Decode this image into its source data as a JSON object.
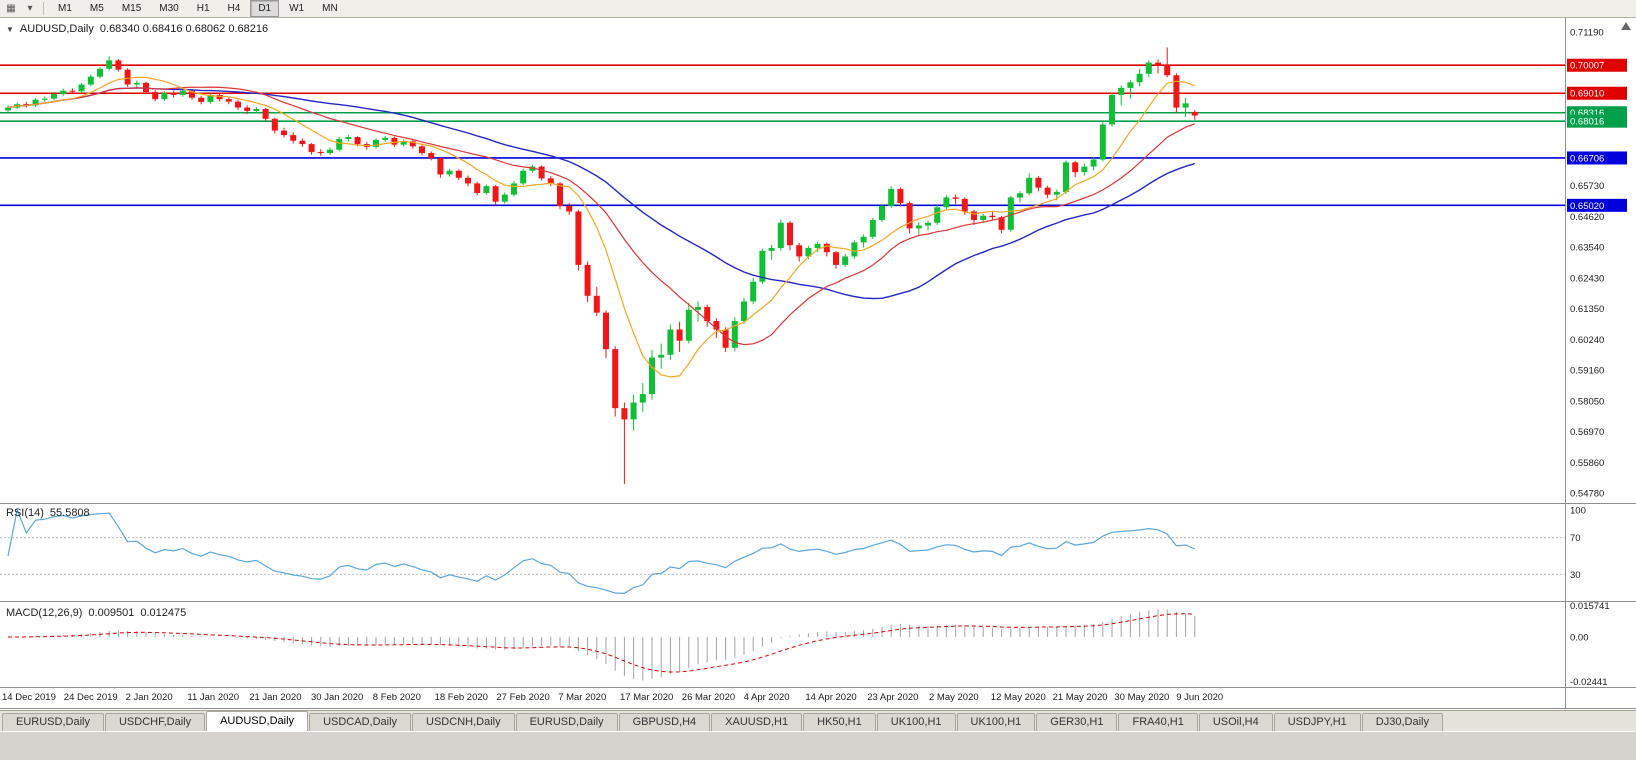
{
  "header": {
    "symbol": "AUDUSD,Daily",
    "ohlc": "0.68340 0.68416 0.68062 0.68216"
  },
  "toolbar": {
    "icons": [
      {
        "name": "charts-icon",
        "glyph": "▦"
      },
      {
        "name": "dropdown-arrow-icon",
        "glyph": "▾"
      }
    ],
    "timeframes": [
      {
        "label": "M1",
        "active": false
      },
      {
        "label": "M5",
        "active": false
      },
      {
        "label": "M15",
        "active": false
      },
      {
        "label": "M30",
        "active": false
      },
      {
        "label": "H1",
        "active": false
      },
      {
        "label": "H4",
        "active": false
      },
      {
        "label": "D1",
        "active": true
      },
      {
        "label": "W1",
        "active": false
      },
      {
        "label": "MN",
        "active": false
      }
    ]
  },
  "rsi_header": {
    "label": "RSI(14)",
    "value": "55.5808"
  },
  "macd_header": {
    "label": "MACD(12,26,9)",
    "value1": "0.009501",
    "value2": "0.012475"
  },
  "colors": {
    "up": "#10bf35",
    "down": "#f21616",
    "ma_fast": "#f5a623",
    "ma_mid": "#e03535",
    "ma_slow": "#2328c8",
    "rsi_line": "#5aa7dc",
    "macd_hist": "#a2a2a2",
    "macd_signal": "#e00000",
    "line_red": "#e00000",
    "line_green": "#00a04a",
    "line_blue": "#0000dc",
    "axis_text": "#1c1c1c",
    "separator": "#8f8f8f"
  },
  "chart_data": {
    "type": "candlestick",
    "symbol": "AUDUSD",
    "timeframe": "Daily",
    "ohlc_display": {
      "open": "0.68340",
      "high": "0.68416",
      "low": "0.68062",
      "close": "0.68216"
    },
    "price_axis": {
      "top": 0.7119,
      "bottom": 0.5478,
      "ticks": [
        "0.71190",
        "0.65730",
        "0.64620",
        "0.63540",
        "0.62430",
        "0.61350",
        "0.60240",
        "0.59160",
        "0.58050",
        "0.56970",
        "0.55860",
        "0.54780"
      ]
    },
    "hlines": [
      {
        "price": 0.70007,
        "label": "0.70007",
        "color": "red"
      },
      {
        "price": 0.6901,
        "label": "0.69010",
        "color": "red"
      },
      {
        "price": 0.68316,
        "label": "0.68316",
        "color": "green"
      },
      {
        "price": 0.68016,
        "label": "0.68016",
        "color": "green"
      },
      {
        "price": 0.66706,
        "label": "0.66706",
        "color": "blue"
      },
      {
        "price": 0.6502,
        "label": "0.65020",
        "color": "blue"
      }
    ],
    "x_labels": [
      "14 Dec 2019",
      "24 Dec 2019",
      "2 Jan 2020",
      "11 Jan 2020",
      "21 Jan 2020",
      "30 Jan 2020",
      "8 Feb 2020",
      "18 Feb 2020",
      "27 Feb 2020",
      "7 Mar 2020",
      "17 Mar 2020",
      "26 Mar 2020",
      "4 Apr 2020",
      "14 Apr 2020",
      "23 Apr 2020",
      "2 May 2020",
      "12 May 2020",
      "21 May 2020",
      "30 May 2020",
      "9 Jun 2020"
    ],
    "candles": [
      [
        0.684,
        0.6858,
        0.6832,
        0.685
      ],
      [
        0.685,
        0.6868,
        0.6845,
        0.6862
      ],
      [
        0.6862,
        0.687,
        0.685,
        0.6858
      ],
      [
        0.6858,
        0.6884,
        0.6852,
        0.6878
      ],
      [
        0.6878,
        0.689,
        0.687,
        0.6882
      ],
      [
        0.6882,
        0.6905,
        0.6876,
        0.6898
      ],
      [
        0.6898,
        0.6918,
        0.6892,
        0.691
      ],
      [
        0.691,
        0.6918,
        0.6898,
        0.6908
      ],
      [
        0.6908,
        0.6938,
        0.6902,
        0.6932
      ],
      [
        0.6932,
        0.6968,
        0.6926,
        0.696
      ],
      [
        0.696,
        0.6994,
        0.6954,
        0.6988
      ],
      [
        0.6988,
        0.7032,
        0.6982,
        0.7018
      ],
      [
        0.7018,
        0.7023,
        0.6978,
        0.6985
      ],
      [
        0.6985,
        0.699,
        0.6924,
        0.6932
      ],
      [
        0.6932,
        0.6946,
        0.692,
        0.6938
      ],
      [
        0.6938,
        0.6942,
        0.6898,
        0.6905
      ],
      [
        0.6905,
        0.6912,
        0.6872,
        0.688
      ],
      [
        0.688,
        0.6908,
        0.6874,
        0.6902
      ],
      [
        0.6902,
        0.691,
        0.6886,
        0.6895
      ],
      [
        0.6895,
        0.6916,
        0.6888,
        0.691
      ],
      [
        0.691,
        0.6914,
        0.6878,
        0.6885
      ],
      [
        0.6885,
        0.6892,
        0.6862,
        0.687
      ],
      [
        0.687,
        0.69,
        0.6864,
        0.6895
      ],
      [
        0.6895,
        0.6902,
        0.6872,
        0.688
      ],
      [
        0.688,
        0.6888,
        0.6862,
        0.6871
      ],
      [
        0.6871,
        0.6878,
        0.6842,
        0.685
      ],
      [
        0.685,
        0.6858,
        0.6828,
        0.6838
      ],
      [
        0.6838,
        0.6852,
        0.683,
        0.6845
      ],
      [
        0.6845,
        0.6848,
        0.68,
        0.681
      ],
      [
        0.681,
        0.6814,
        0.6758,
        0.6768
      ],
      [
        0.6768,
        0.6778,
        0.6744,
        0.6752
      ],
      [
        0.6752,
        0.6762,
        0.6722,
        0.6732
      ],
      [
        0.6732,
        0.674,
        0.671,
        0.672
      ],
      [
        0.672,
        0.6724,
        0.6682,
        0.6692
      ],
      [
        0.6692,
        0.6702,
        0.6678,
        0.6688
      ],
      [
        0.6688,
        0.6708,
        0.6682,
        0.67
      ],
      [
        0.67,
        0.6744,
        0.6694,
        0.6738
      ],
      [
        0.6738,
        0.6752,
        0.673,
        0.6745
      ],
      [
        0.6745,
        0.6748,
        0.6712,
        0.672
      ],
      [
        0.672,
        0.6728,
        0.67,
        0.671
      ],
      [
        0.671,
        0.674,
        0.6704,
        0.6735
      ],
      [
        0.6735,
        0.675,
        0.6728,
        0.6742
      ],
      [
        0.6742,
        0.6746,
        0.671,
        0.6718
      ],
      [
        0.6718,
        0.6736,
        0.6712,
        0.673
      ],
      [
        0.673,
        0.6734,
        0.6704,
        0.6712
      ],
      [
        0.6712,
        0.6718,
        0.668,
        0.6688
      ],
      [
        0.6688,
        0.6694,
        0.6662,
        0.667
      ],
      [
        0.667,
        0.6674,
        0.66,
        0.6612
      ],
      [
        0.6612,
        0.6632,
        0.6604,
        0.6625
      ],
      [
        0.6625,
        0.663,
        0.6592,
        0.66
      ],
      [
        0.66,
        0.6608,
        0.657,
        0.658
      ],
      [
        0.658,
        0.6586,
        0.6538,
        0.6546
      ],
      [
        0.6546,
        0.6576,
        0.654,
        0.657
      ],
      [
        0.657,
        0.6574,
        0.6502,
        0.6515
      ],
      [
        0.6515,
        0.6548,
        0.6508,
        0.654
      ],
      [
        0.654,
        0.6588,
        0.6534,
        0.658
      ],
      [
        0.658,
        0.6632,
        0.6574,
        0.6625
      ],
      [
        0.6625,
        0.6646,
        0.6618,
        0.664
      ],
      [
        0.664,
        0.6644,
        0.659,
        0.6598
      ],
      [
        0.6598,
        0.6606,
        0.657,
        0.658
      ],
      [
        0.658,
        0.6584,
        0.6488,
        0.65
      ],
      [
        0.65,
        0.651,
        0.6468,
        0.648
      ],
      [
        0.648,
        0.6486,
        0.627,
        0.629
      ],
      [
        0.629,
        0.6302,
        0.6158,
        0.618
      ],
      [
        0.618,
        0.6212,
        0.6108,
        0.612
      ],
      [
        0.612,
        0.6128,
        0.5958,
        0.599
      ],
      [
        0.599,
        0.6,
        0.575,
        0.578
      ],
      [
        0.578,
        0.58,
        0.551,
        0.574
      ],
      [
        0.574,
        0.5828,
        0.57,
        0.58
      ],
      [
        0.58,
        0.587,
        0.5766,
        0.583
      ],
      [
        0.583,
        0.5988,
        0.581,
        0.596
      ],
      [
        0.596,
        0.601,
        0.592,
        0.597
      ],
      [
        0.597,
        0.6078,
        0.5952,
        0.606
      ],
      [
        0.606,
        0.6088,
        0.598,
        0.602
      ],
      [
        0.602,
        0.6155,
        0.601,
        0.613
      ],
      [
        0.613,
        0.616,
        0.6088,
        0.614
      ],
      [
        0.614,
        0.6148,
        0.607,
        0.609
      ],
      [
        0.609,
        0.61,
        0.603,
        0.606
      ],
      [
        0.606,
        0.6068,
        0.598,
        0.5995
      ],
      [
        0.5995,
        0.6104,
        0.5982,
        0.609
      ],
      [
        0.609,
        0.6172,
        0.608,
        0.616
      ],
      [
        0.616,
        0.6244,
        0.615,
        0.623
      ],
      [
        0.623,
        0.6348,
        0.6222,
        0.634
      ],
      [
        0.634,
        0.6362,
        0.6308,
        0.635
      ],
      [
        0.635,
        0.6452,
        0.634,
        0.644
      ],
      [
        0.644,
        0.6446,
        0.6342,
        0.636
      ],
      [
        0.636,
        0.6368,
        0.6302,
        0.632
      ],
      [
        0.632,
        0.6358,
        0.631,
        0.635
      ],
      [
        0.635,
        0.6372,
        0.6336,
        0.6365
      ],
      [
        0.6365,
        0.637,
        0.632,
        0.6335
      ],
      [
        0.6335,
        0.634,
        0.6276,
        0.629
      ],
      [
        0.629,
        0.633,
        0.6282,
        0.632
      ],
      [
        0.632,
        0.6378,
        0.6312,
        0.637
      ],
      [
        0.637,
        0.6398,
        0.6352,
        0.639
      ],
      [
        0.639,
        0.6458,
        0.6382,
        0.645
      ],
      [
        0.645,
        0.6508,
        0.6442,
        0.65
      ],
      [
        0.65,
        0.657,
        0.6492,
        0.656
      ],
      [
        0.656,
        0.6566,
        0.6498,
        0.651
      ],
      [
        0.651,
        0.6516,
        0.6402,
        0.642
      ],
      [
        0.642,
        0.6442,
        0.6398,
        0.643
      ],
      [
        0.643,
        0.6448,
        0.6412,
        0.644
      ],
      [
        0.644,
        0.6502,
        0.6432,
        0.6495
      ],
      [
        0.6495,
        0.6538,
        0.6488,
        0.653
      ],
      [
        0.653,
        0.654,
        0.6506,
        0.6525
      ],
      [
        0.6525,
        0.653,
        0.6468,
        0.648
      ],
      [
        0.648,
        0.6486,
        0.6432,
        0.645
      ],
      [
        0.645,
        0.6472,
        0.6442,
        0.6465
      ],
      [
        0.6465,
        0.6478,
        0.6448,
        0.646
      ],
      [
        0.646,
        0.6464,
        0.6402,
        0.6415
      ],
      [
        0.6415,
        0.6536,
        0.6408,
        0.653
      ],
      [
        0.653,
        0.6552,
        0.6512,
        0.6545
      ],
      [
        0.6545,
        0.6616,
        0.6538,
        0.66
      ],
      [
        0.66,
        0.6606,
        0.6552,
        0.6565
      ],
      [
        0.6565,
        0.6572,
        0.6528,
        0.654
      ],
      [
        0.654,
        0.6558,
        0.652,
        0.655
      ],
      [
        0.655,
        0.6662,
        0.6542,
        0.6655
      ],
      [
        0.6655,
        0.666,
        0.6602,
        0.662
      ],
      [
        0.662,
        0.665,
        0.6608,
        0.664
      ],
      [
        0.664,
        0.6672,
        0.6626,
        0.6665
      ],
      [
        0.6665,
        0.6798,
        0.6658,
        0.679
      ],
      [
        0.679,
        0.6902,
        0.6782,
        0.6895
      ],
      [
        0.6895,
        0.6928,
        0.6858,
        0.692
      ],
      [
        0.692,
        0.6948,
        0.6882,
        0.694
      ],
      [
        0.694,
        0.6988,
        0.6926,
        0.697
      ],
      [
        0.697,
        0.7018,
        0.6958,
        0.701
      ],
      [
        0.701,
        0.7022,
        0.6972,
        0.7
      ],
      [
        0.7,
        0.7064,
        0.6958,
        0.6965
      ],
      [
        0.6965,
        0.6972,
        0.6832,
        0.685
      ],
      [
        0.685,
        0.6884,
        0.6816,
        0.6865
      ],
      [
        0.6834,
        0.68416,
        0.68062,
        0.68216
      ]
    ],
    "indicators": {
      "rsi": {
        "label": "RSI(14)",
        "current": "55.5808",
        "levels": [
          "100",
          "70",
          "30"
        ]
      },
      "macd": {
        "label": "MACD(12,26,9)",
        "main": "0.009501",
        "signal": "0.012475",
        "scale": [
          "0.015741",
          "0.00",
          "-0.02441"
        ]
      }
    }
  },
  "tabs": [
    {
      "label": "EURUSD,Daily",
      "active": false
    },
    {
      "label": "USDCHF,Daily",
      "active": false
    },
    {
      "label": "AUDUSD,Daily",
      "active": true
    },
    {
      "label": "USDCAD,Daily",
      "active": false
    },
    {
      "label": "USDCNH,Daily",
      "active": false
    },
    {
      "label": "EURUSD,Daily",
      "active": false
    },
    {
      "label": "GBPUSD,H4",
      "active": false
    },
    {
      "label": "XAUUSD,H1",
      "active": false
    },
    {
      "label": "HK50,H1",
      "active": false
    },
    {
      "label": "UK100,H1",
      "active": false
    },
    {
      "label": "UK100,H1",
      "active": false
    },
    {
      "label": "GER30,H1",
      "active": false
    },
    {
      "label": "FRA40,H1",
      "active": false
    },
    {
      "label": "USOil,H4",
      "active": false
    },
    {
      "label": "USDJPY,H1",
      "active": false
    },
    {
      "label": "DJ30,Daily",
      "active": false
    }
  ]
}
